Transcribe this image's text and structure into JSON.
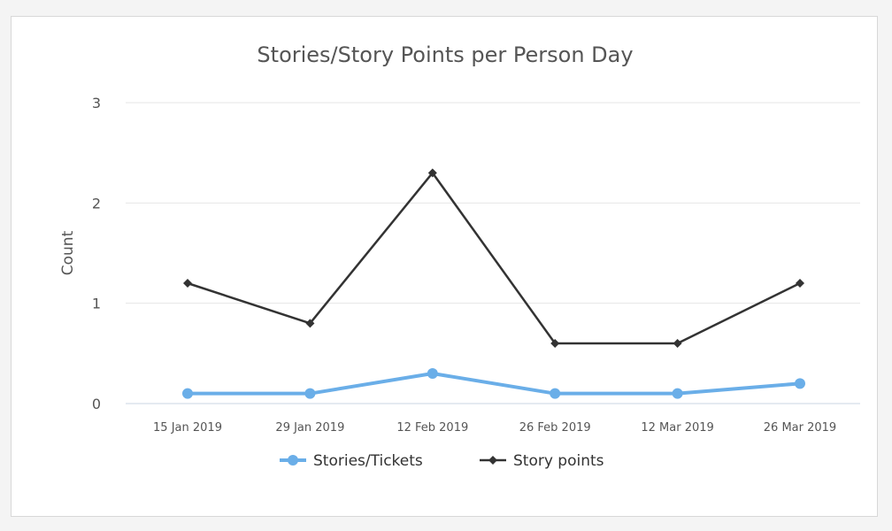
{
  "chart_data": {
    "type": "line",
    "title": "Stories/Story Points per Person Day",
    "xlabel": "",
    "ylabel": "Count",
    "categories": [
      "15 Jan 2019",
      "29 Jan 2019",
      "12 Feb 2019",
      "26 Feb 2019",
      "12 Mar 2019",
      "26 Mar 2019"
    ],
    "ylim": [
      0,
      3
    ],
    "yticks": [
      "0",
      "1",
      "2",
      "3"
    ],
    "grid": true,
    "legend_position": "bottom",
    "series": [
      {
        "name": "Stories/Tickets",
        "values": [
          0.1,
          0.1,
          0.3,
          0.1,
          0.1,
          0.2
        ],
        "color": "#6aaee8",
        "marker": "circle"
      },
      {
        "name": "Story points",
        "values": [
          1.2,
          0.8,
          2.3,
          0.6,
          0.6,
          1.2
        ],
        "color": "#333333",
        "marker": "diamond"
      }
    ]
  }
}
